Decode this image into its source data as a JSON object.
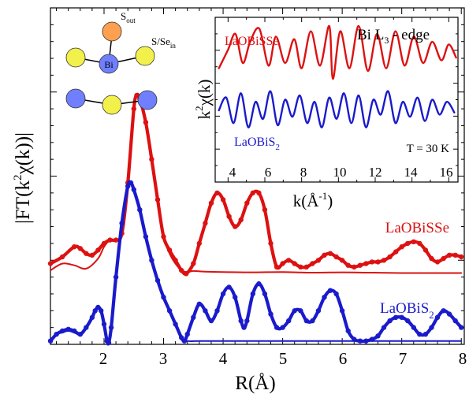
{
  "chart_data": [
    {
      "type": "line",
      "xlabel": "R(Å)",
      "ylabel": "|FT(k²χ(k))|",
      "xlim": [
        1.1,
        8.05
      ],
      "ylim": [
        0,
        1.0
      ],
      "x_ticks": [
        "2",
        "3",
        "4",
        "5",
        "6",
        "7",
        "8"
      ],
      "y_tick_labels": false,
      "series": [
        {
          "name": "LaOBiSSe",
          "color": "#dd1111",
          "role": "data-markers",
          "x": [
            1.1,
            1.3,
            1.5,
            1.6,
            1.7,
            1.8,
            1.9,
            2.0,
            2.1,
            2.2,
            2.3,
            2.4,
            2.5,
            2.55,
            2.6,
            2.7,
            2.8,
            2.9,
            3.0,
            3.1,
            3.2,
            3.3,
            3.38,
            3.5,
            3.6,
            3.7,
            3.8,
            3.9,
            4.0,
            4.1,
            4.2,
            4.3,
            4.4,
            4.5,
            4.6,
            4.7,
            4.8,
            4.9,
            5.0,
            5.1,
            5.2,
            5.3,
            5.4,
            5.5,
            5.6,
            5.7,
            5.8,
            5.9,
            6.0,
            6.1,
            6.2,
            6.3,
            6.4,
            6.5,
            6.6,
            6.7,
            6.8,
            6.9,
            7.0,
            7.1,
            7.2,
            7.3,
            7.4,
            7.5,
            7.6,
            7.7,
            7.8,
            7.9,
            8.0
          ],
          "y": [
            0.24,
            0.26,
            0.29,
            0.285,
            0.27,
            0.265,
            0.28,
            0.3,
            0.31,
            0.31,
            0.33,
            0.48,
            0.7,
            0.74,
            0.73,
            0.66,
            0.55,
            0.43,
            0.32,
            0.28,
            0.25,
            0.22,
            0.21,
            0.24,
            0.3,
            0.36,
            0.42,
            0.45,
            0.43,
            0.38,
            0.35,
            0.37,
            0.42,
            0.45,
            0.45,
            0.4,
            0.3,
            0.23,
            0.24,
            0.25,
            0.24,
            0.23,
            0.23,
            0.24,
            0.25,
            0.265,
            0.27,
            0.26,
            0.25,
            0.235,
            0.23,
            0.235,
            0.24,
            0.245,
            0.245,
            0.25,
            0.26,
            0.275,
            0.29,
            0.3,
            0.305,
            0.3,
            0.28,
            0.255,
            0.245,
            0.255,
            0.265,
            0.265,
            0.26
          ]
        },
        {
          "name": "LaOBiSSe",
          "color": "#dd1111",
          "role": "fit-line",
          "x": [
            1.1,
            1.3,
            1.5,
            1.7,
            1.9,
            2.0,
            2.1,
            2.2,
            2.3,
            2.4,
            2.5,
            2.55,
            2.6,
            2.7,
            2.8,
            2.9,
            3.0,
            3.1,
            3.2,
            3.3,
            3.4,
            3.5,
            3.7,
            4.0,
            4.5,
            5.0,
            5.5,
            6.0,
            6.5,
            7.0,
            7.5,
            8.0
          ],
          "y": [
            0.22,
            0.24,
            0.235,
            0.225,
            0.255,
            0.29,
            0.31,
            0.31,
            0.33,
            0.48,
            0.7,
            0.74,
            0.73,
            0.66,
            0.55,
            0.43,
            0.32,
            0.27,
            0.24,
            0.22,
            0.215,
            0.218,
            0.216,
            0.215,
            0.214,
            0.215,
            0.213,
            0.214,
            0.213,
            0.212,
            0.212,
            0.212
          ]
        },
        {
          "name": "LaOBiS₂",
          "color": "#1a1acc",
          "role": "data-markers",
          "x": [
            1.1,
            1.2,
            1.3,
            1.4,
            1.5,
            1.6,
            1.7,
            1.8,
            1.85,
            1.9,
            1.95,
            2.0,
            2.05,
            2.08,
            2.12,
            2.2,
            2.3,
            2.4,
            2.45,
            2.5,
            2.6,
            2.7,
            2.8,
            2.9,
            3.0,
            3.1,
            3.2,
            3.3,
            3.35,
            3.4,
            3.5,
            3.6,
            3.7,
            3.8,
            3.9,
            4.0,
            4.1,
            4.2,
            4.3,
            4.35,
            4.4,
            4.5,
            4.6,
            4.7,
            4.8,
            4.9,
            5.0,
            5.1,
            5.2,
            5.3,
            5.4,
            5.5,
            5.6,
            5.7,
            5.8,
            5.9,
            6.0,
            6.1,
            6.2,
            6.3,
            6.4,
            6.5,
            6.6,
            6.7,
            6.8,
            6.9,
            7.0,
            7.1,
            7.2,
            7.3,
            7.4,
            7.5,
            7.6,
            7.7,
            7.8,
            7.9,
            8.0
          ],
          "y": [
            0.01,
            0.03,
            0.04,
            0.045,
            0.04,
            0.03,
            0.05,
            0.08,
            0.1,
            0.11,
            0.1,
            0.06,
            0.01,
            0.005,
            0.05,
            0.2,
            0.36,
            0.47,
            0.48,
            0.46,
            0.4,
            0.32,
            0.25,
            0.19,
            0.14,
            0.1,
            0.06,
            0.02,
            0.01,
            0.03,
            0.08,
            0.12,
            0.1,
            0.07,
            0.1,
            0.15,
            0.17,
            0.14,
            0.07,
            0.05,
            0.07,
            0.15,
            0.18,
            0.15,
            0.09,
            0.05,
            0.05,
            0.07,
            0.1,
            0.1,
            0.07,
            0.07,
            0.1,
            0.14,
            0.16,
            0.15,
            0.1,
            0.04,
            0.015,
            0.01,
            0.01,
            0.015,
            0.025,
            0.05,
            0.07,
            0.08,
            0.08,
            0.07,
            0.05,
            0.03,
            0.03,
            0.05,
            0.08,
            0.1,
            0.09,
            0.07,
            0.05
          ]
        },
        {
          "name": "LaOBiS₂",
          "color": "#1a1acc",
          "role": "fit-line",
          "x": [
            1.1,
            1.2,
            1.3,
            1.4,
            1.5,
            1.6,
            1.7,
            1.8,
            1.85,
            1.9,
            1.95,
            2.0,
            2.05,
            2.08,
            2.12,
            2.2,
            2.3,
            2.4,
            2.45,
            2.5,
            2.6,
            2.7,
            2.8,
            2.9,
            3.0,
            3.1,
            3.2,
            3.3,
            3.4,
            3.6,
            4.0,
            5.0,
            6.0,
            7.0,
            8.0
          ],
          "y": [
            0.01,
            0.03,
            0.035,
            0.04,
            0.035,
            0.03,
            0.05,
            0.08,
            0.1,
            0.11,
            0.1,
            0.06,
            0.01,
            0.005,
            0.05,
            0.2,
            0.36,
            0.47,
            0.48,
            0.46,
            0.4,
            0.32,
            0.25,
            0.19,
            0.14,
            0.1,
            0.06,
            0.02,
            0.01,
            0.01,
            0.01,
            0.01,
            0.01,
            0.01,
            0.01
          ]
        }
      ]
    },
    {
      "type": "line",
      "title": "Bi L3 - edge",
      "xlabel": "k(Å⁻¹)",
      "ylabel": "k²χ(k)",
      "xlim": [
        3.3,
        16.5
      ],
      "x_ticks": [
        "4",
        "6",
        "8",
        "10",
        "12",
        "14",
        "16"
      ],
      "annotation": "T = 30 K",
      "series": [
        {
          "name": "LaOBiSSe",
          "color": "#dd1111",
          "x": [
            3.5,
            4.0,
            4.4,
            4.8,
            5.2,
            5.7,
            6.2,
            6.6,
            7.1,
            7.6,
            8.0,
            8.5,
            9.0,
            9.5,
            9.7,
            10.1,
            10.6,
            11.1,
            11.6,
            12.1,
            12.6,
            13.1,
            13.6,
            14.1,
            14.6,
            15.1,
            15.6,
            16.0,
            16.4
          ],
          "y": [
            0.2,
            0.55,
            0.85,
            0.3,
            0.7,
            0.95,
            0.25,
            0.8,
            0.3,
            0.75,
            0.2,
            0.9,
            0.25,
            1.0,
            0.0,
            0.9,
            0.2,
            1.0,
            0.15,
            0.85,
            0.2,
            0.9,
            0.25,
            0.8,
            0.3,
            0.7,
            0.35,
            0.65,
            0.4
          ]
        },
        {
          "name": "LaOBiS₂",
          "color": "#1a1acc",
          "x": [
            3.5,
            3.9,
            4.3,
            4.7,
            5.1,
            5.5,
            5.9,
            6.3,
            6.7,
            7.1,
            7.5,
            7.9,
            8.3,
            8.7,
            9.1,
            9.5,
            9.9,
            10.3,
            10.7,
            11.1,
            11.5,
            11.9,
            12.3,
            12.7,
            13.1,
            13.5,
            13.9,
            14.3,
            14.7,
            15.1,
            15.5,
            15.9,
            16.3
          ],
          "y": [
            0.5,
            0.8,
            0.2,
            0.9,
            0.1,
            0.7,
            0.3,
            0.95,
            0.15,
            0.75,
            0.35,
            0.85,
            0.2,
            0.7,
            0.1,
            0.8,
            0.3,
            0.9,
            0.2,
            0.85,
            0.1,
            0.75,
            0.4,
            0.95,
            0.2,
            0.7,
            0.35,
            0.8,
            0.25,
            0.75,
            0.4,
            0.7,
            0.45
          ]
        }
      ]
    }
  ],
  "main_labels": {
    "ssse": "LaOBiSSe",
    "s2_base": "LaOBiS",
    "s2_sub": "2"
  },
  "inset_labels": {
    "ssse": "LaOBiSSe",
    "s2_base": "LaOBiS",
    "s2_sub": "2",
    "edge_base": "Bi L",
    "edge_sub": "3",
    "edge_tail": " - edge",
    "temp": "T = 30 K",
    "ylabel_base": "k",
    "ylabel_sup": "2",
    "ylabel_tail": "χ(k)",
    "xlabel_base": "k(Å",
    "xlabel_sup": "-1",
    "xlabel_tail": ")"
  },
  "axis_text": {
    "ylabel_base": "|FT(k",
    "ylabel_sup": "2",
    "ylabel_tail": "χ(k))|",
    "xlabel": "R(Å)"
  },
  "structure": {
    "bi_label": "Bi",
    "sout_base": "S",
    "sout_sub": "out",
    "sse_base": "S/Se",
    "sse_sub": "in",
    "colors": {
      "bi": "#6f7fff",
      "s_out": "#ff9f50",
      "s_in": "#f2f04a"
    }
  }
}
